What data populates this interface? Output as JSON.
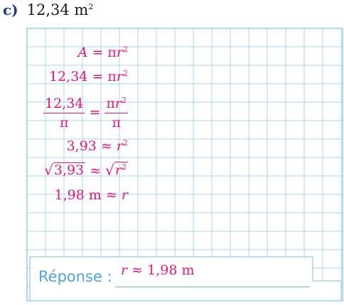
{
  "exercise": {
    "label": "c)",
    "given_value": "12,34 m",
    "given_exponent": "2"
  },
  "steps": [
    {
      "id": "step1",
      "lhs_var": "A",
      "rel": "=",
      "rhs_pi": "π",
      "rhs_var": "r",
      "rhs_exp": "2"
    },
    {
      "id": "step2",
      "lhs": "12,34",
      "rel": "=",
      "rhs_pi": "π",
      "rhs_var": "r",
      "rhs_exp": "2"
    },
    {
      "id": "step3",
      "lhs_num": "12,34",
      "lhs_den": "π",
      "rel": "=",
      "rhs_num_pi": "π",
      "rhs_num_var": "r",
      "rhs_num_exp": "2",
      "rhs_den": "π"
    },
    {
      "id": "step4",
      "lhs": "3,93",
      "rel": "≈",
      "rhs_var": "r",
      "rhs_exp": "2"
    },
    {
      "id": "step5",
      "sqrt_sign": "√",
      "lhs_radicand": "3,93",
      "rel": "≈",
      "rhs_radicand_var": "r",
      "rhs_radicand_exp": "2"
    },
    {
      "id": "step6",
      "lhs": "1,98 m",
      "rel": "≈",
      "rhs_var": "r"
    }
  ],
  "answer": {
    "label": "Réponse :",
    "value_var": "r",
    "value_rel": "≈",
    "value": "1,98 m"
  },
  "colors": {
    "ink_magenta": "#e6157c",
    "grid_blue": "#a9d4f0",
    "answer_blue": "#4fa3e0",
    "header_blue": "#1f3a93"
  }
}
